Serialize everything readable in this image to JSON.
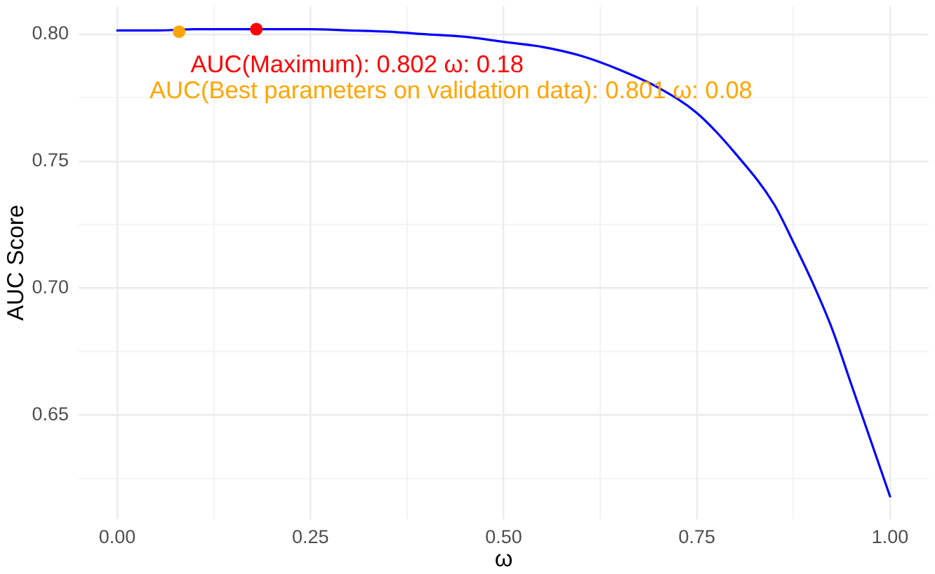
{
  "chart_data": {
    "type": "line",
    "xlabel": "ω",
    "ylabel": "AUC Score",
    "xlim": [
      -0.05,
      1.05
    ],
    "xticks": [
      {
        "value": 0,
        "label": "0.00"
      },
      {
        "value": 0.125,
        "label": null
      },
      {
        "value": 0.25,
        "label": "0.25"
      },
      {
        "value": 0.375,
        "label": null
      },
      {
        "value": 0.5,
        "label": "0.50"
      },
      {
        "value": 0.625,
        "label": null
      },
      {
        "value": 0.75,
        "label": "0.75"
      },
      {
        "value": 0.875,
        "label": null
      },
      {
        "value": 1,
        "label": "1.00"
      }
    ],
    "ylim": [
      0.609,
      0.811
    ],
    "yticks": [
      {
        "value": 0.625,
        "label": null
      },
      {
        "value": 0.65,
        "label": "0.65"
      },
      {
        "value": 0.675,
        "label": null
      },
      {
        "value": 0.7,
        "label": "0.70"
      },
      {
        "value": 0.725,
        "label": null
      },
      {
        "value": 0.75,
        "label": "0.75"
      },
      {
        "value": 0.775,
        "label": null
      },
      {
        "value": 0.8,
        "label": "0.80"
      }
    ],
    "grid": true,
    "series": [
      {
        "type": "line",
        "color": "#0000ff",
        "marker": "none",
        "x": [
          0,
          0.05,
          0.1,
          0.15,
          0.2,
          0.25,
          0.3,
          0.35,
          0.4,
          0.45,
          0.5,
          0.55,
          0.6,
          0.65,
          0.7,
          0.75,
          0.8,
          0.85,
          0.875,
          0.9,
          0.925,
          0.95,
          0.975,
          1
        ],
        "values": [
          0.8015,
          0.8015,
          0.802,
          0.802,
          0.802,
          0.802,
          0.8015,
          0.801,
          0.8,
          0.799,
          0.797,
          0.795,
          0.7915,
          0.786,
          0.779,
          0.769,
          0.753,
          0.733,
          0.718,
          0.702,
          0.684,
          0.662,
          0.64,
          0.618
        ]
      },
      {
        "type": "scatter",
        "colors": [
          "#ff0000",
          "#ffa500"
        ],
        "marker": "circle",
        "x": [
          0.18,
          0.08
        ],
        "values": [
          0.802,
          0.801
        ]
      }
    ],
    "annotations": [
      "AUC(Maximum): 0.802 ω: 0.18",
      "AUC(Best parameters on validation data): 0.801 ω: 0.08"
    ]
  }
}
